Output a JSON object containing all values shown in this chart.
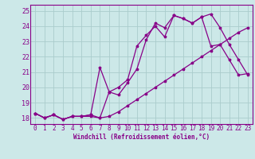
{
  "xlabel": "Windchill (Refroidissement éolien,°C)",
  "bg_color": "#cce8e8",
  "grid_color": "#aacccc",
  "line_color": "#880088",
  "xlim_min": -0.5,
  "xlim_max": 23.5,
  "ylim_min": 17.6,
  "ylim_max": 25.4,
  "xticks": [
    0,
    1,
    2,
    3,
    4,
    5,
    6,
    7,
    8,
    9,
    10,
    11,
    12,
    13,
    14,
    15,
    16,
    17,
    18,
    19,
    20,
    21,
    22,
    23
  ],
  "yticks": [
    18,
    19,
    20,
    21,
    22,
    23,
    24,
    25
  ],
  "line1_x": [
    0,
    1,
    2,
    3,
    4,
    5,
    6,
    7,
    8,
    9,
    10,
    11,
    12,
    13,
    14,
    15,
    16,
    17,
    18,
    19,
    20,
    21,
    22,
    23
  ],
  "line1_y": [
    18.3,
    18.0,
    18.2,
    17.9,
    18.1,
    18.1,
    18.2,
    18.0,
    19.7,
    19.5,
    20.3,
    21.2,
    23.1,
    24.2,
    23.9,
    24.7,
    24.5,
    24.2,
    24.6,
    24.8,
    23.9,
    22.8,
    21.8,
    20.8
  ],
  "line2_x": [
    0,
    1,
    2,
    3,
    4,
    5,
    6,
    7,
    8,
    9,
    10,
    11,
    12,
    13,
    14,
    15,
    16,
    17,
    18,
    19,
    20,
    21,
    22,
    23
  ],
  "line2_y": [
    18.3,
    18.0,
    18.2,
    17.9,
    18.1,
    18.1,
    18.2,
    21.3,
    19.7,
    20.0,
    20.5,
    22.7,
    23.4,
    24.0,
    23.3,
    24.7,
    24.5,
    24.2,
    24.6,
    22.7,
    22.8,
    21.8,
    20.8,
    20.9
  ],
  "line3_x": [
    0,
    1,
    2,
    3,
    4,
    5,
    6,
    7,
    8,
    9,
    10,
    11,
    12,
    13,
    14,
    15,
    16,
    17,
    18,
    19,
    20,
    21,
    22,
    23
  ],
  "line3_y": [
    18.3,
    18.0,
    18.2,
    17.9,
    18.1,
    18.1,
    18.1,
    18.0,
    18.1,
    18.4,
    18.8,
    19.2,
    19.6,
    20.0,
    20.4,
    20.8,
    21.2,
    21.6,
    22.0,
    22.4,
    22.8,
    23.2,
    23.6,
    23.9
  ],
  "tick_fontsize": 5.5,
  "xlabel_fontsize": 5.5,
  "linewidth": 0.9,
  "markersize": 2.5
}
